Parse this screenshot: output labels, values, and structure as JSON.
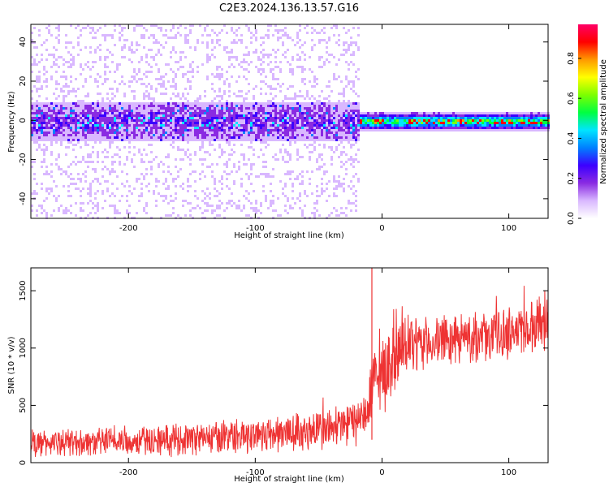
{
  "figure": {
    "title": "C2E3.2024.136.13.57.G16"
  },
  "chart_data": [
    {
      "type": "heatmap",
      "xlabel": "Height of straight line (km)",
      "ylabel": "Frequency (Hz)",
      "xlim": [
        -277,
        131
      ],
      "ylim": [
        -50,
        49
      ],
      "x_ticks": [
        -200,
        -100,
        0,
        100
      ],
      "y_ticks": [
        -40,
        -20,
        0,
        20,
        40
      ],
      "colorbar": {
        "label": "Normalized spectral amplitude",
        "range": [
          0.0,
          0.97
        ],
        "ticks": [
          0.0,
          0.2,
          0.4,
          0.6,
          0.8
        ],
        "colormap": [
          "#ffffff",
          "#d9b8ff",
          "#8a2be2",
          "#3c00ff",
          "#0080ff",
          "#00e5ff",
          "#00ff40",
          "#7dff00",
          "#ffff00",
          "#ff9900",
          "#ff0000",
          "#ff0066"
        ]
      },
      "description_fields": {
        "noise_region_x": [
          -277,
          -18
        ],
        "noise_peak_frequency_hz": 0,
        "signal_region_x": [
          -18,
          131
        ],
        "signal_center_frequency_hz": 0,
        "signal_peak_amplitude": 0.95
      },
      "grid": false
    },
    {
      "type": "line",
      "xlabel": "Height of straight line (km)",
      "ylabel": "SNR (10 * v/v)",
      "xlim": [
        -277,
        131
      ],
      "ylim": [
        0,
        1700
      ],
      "x_ticks": [
        -200,
        -100,
        0,
        100
      ],
      "y_ticks": [
        0,
        500,
        1000,
        1500
      ],
      "series": [
        {
          "color": "#ee3333",
          "x": [
            -277,
            -250,
            -220,
            -200,
            -180,
            -160,
            -140,
            -120,
            -100,
            -80,
            -60,
            -40,
            -30,
            -20,
            -15,
            -12,
            -10,
            -8,
            -5,
            0,
            5,
            10,
            20,
            30,
            40,
            50,
            60,
            70,
            80,
            90,
            100,
            110,
            120,
            131
          ],
          "mean": [
            170,
            175,
            180,
            185,
            195,
            205,
            215,
            225,
            240,
            255,
            275,
            300,
            320,
            350,
            380,
            450,
            560,
            650,
            720,
            780,
            850,
            920,
            1000,
            1030,
            1050,
            1060,
            1080,
            1090,
            1100,
            1120,
            1140,
            1170,
            1200,
            1250
          ],
          "spread": [
            110,
            110,
            115,
            120,
            125,
            130,
            135,
            140,
            150,
            160,
            170,
            180,
            190,
            200,
            200,
            260,
            260,
            280,
            300,
            320,
            320,
            300,
            250,
            220,
            200,
            200,
            200,
            200,
            200,
            210,
            220,
            220,
            220,
            230
          ],
          "spike": {
            "x": -8,
            "y": 1700
          }
        }
      ],
      "grid": false
    }
  ]
}
